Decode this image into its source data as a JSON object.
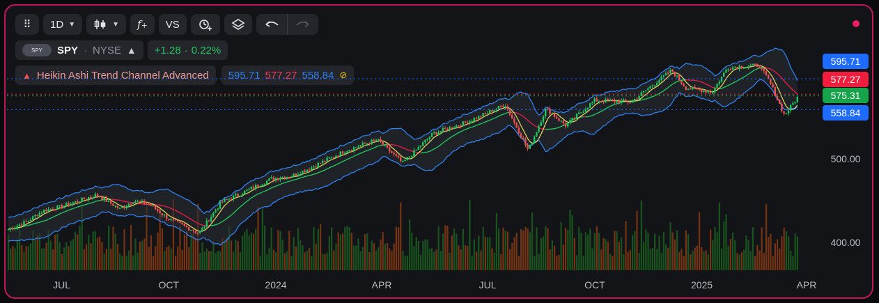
{
  "toolbar": {
    "interval": "1D",
    "vs_label": "VS"
  },
  "symbol": {
    "logo_text": "SPY",
    "ticker": "SPY",
    "exchange": "NYSE",
    "change_abs": "+1.28",
    "change_pct": "0.22%"
  },
  "indicator": {
    "name": "Heikin Ashi Trend Channel Advanced",
    "value_upper": "595.71",
    "value_mid": "577.27",
    "value_lower": "558.84"
  },
  "price_tags": [
    {
      "label": "595.71",
      "value": 595.71,
      "color": "#1e6bff"
    },
    {
      "label": "577.27",
      "value": 577.27,
      "color": "#f21d3d"
    },
    {
      "label": "575.31",
      "value": 575.31,
      "color": "#16a34a"
    },
    {
      "label": "558.84",
      "value": 558.84,
      "color": "#1e6bff"
    }
  ],
  "colors": {
    "accent_border": "#c2185b",
    "bull": "#22c55e",
    "bear": "#ef5350",
    "band": "#2f80ed",
    "mid_green": "#22c55e",
    "mid_red": "#e11d48",
    "fast_yellow": "#f5e663"
  },
  "chart_data": {
    "type": "candlestick",
    "x_ticks": [
      "JUL",
      "OCT",
      "2024",
      "APR",
      "JUL",
      "OCT",
      "2025",
      "APR"
    ],
    "y_ticks": [
      {
        "label": "500.00",
        "value": 500
      },
      {
        "label": "400.00",
        "value": 400
      }
    ],
    "price_path": [
      [
        "2023-05-15",
        415
      ],
      [
        "2023-06-01",
        425
      ],
      [
        "2023-06-15",
        438
      ],
      [
        "2023-07-01",
        443
      ],
      [
        "2023-07-31",
        457
      ],
      [
        "2023-08-20",
        440
      ],
      [
        "2023-09-01",
        450
      ],
      [
        "2023-09-15",
        445
      ],
      [
        "2023-10-01",
        428
      ],
      [
        "2023-10-27",
        411
      ],
      [
        "2023-11-15",
        448
      ],
      [
        "2023-12-01",
        458
      ],
      [
        "2023-12-28",
        476
      ],
      [
        "2024-01-15",
        480
      ],
      [
        "2024-02-01",
        490
      ],
      [
        "2024-03-01",
        510
      ],
      [
        "2024-03-28",
        523
      ],
      [
        "2024-04-19",
        495
      ],
      [
        "2024-05-15",
        530
      ],
      [
        "2024-06-15",
        545
      ],
      [
        "2024-07-16",
        565
      ],
      [
        "2024-08-05",
        510
      ],
      [
        "2024-08-20",
        560
      ],
      [
        "2024-09-06",
        540
      ],
      [
        "2024-10-01",
        570
      ],
      [
        "2024-11-01",
        568
      ],
      [
        "2024-12-06",
        606
      ],
      [
        "2024-12-18",
        585
      ],
      [
        "2025-01-10",
        580
      ],
      [
        "2025-01-23",
        609
      ],
      [
        "2025-02-19",
        612
      ],
      [
        "2025-03-01",
        590
      ],
      [
        "2025-03-13",
        552
      ],
      [
        "2025-03-25",
        575
      ]
    ],
    "channel": {
      "upper_last": 595.71,
      "mid_last": 577.27,
      "lower_last": 558.84
    },
    "last_close": 575.31
  }
}
